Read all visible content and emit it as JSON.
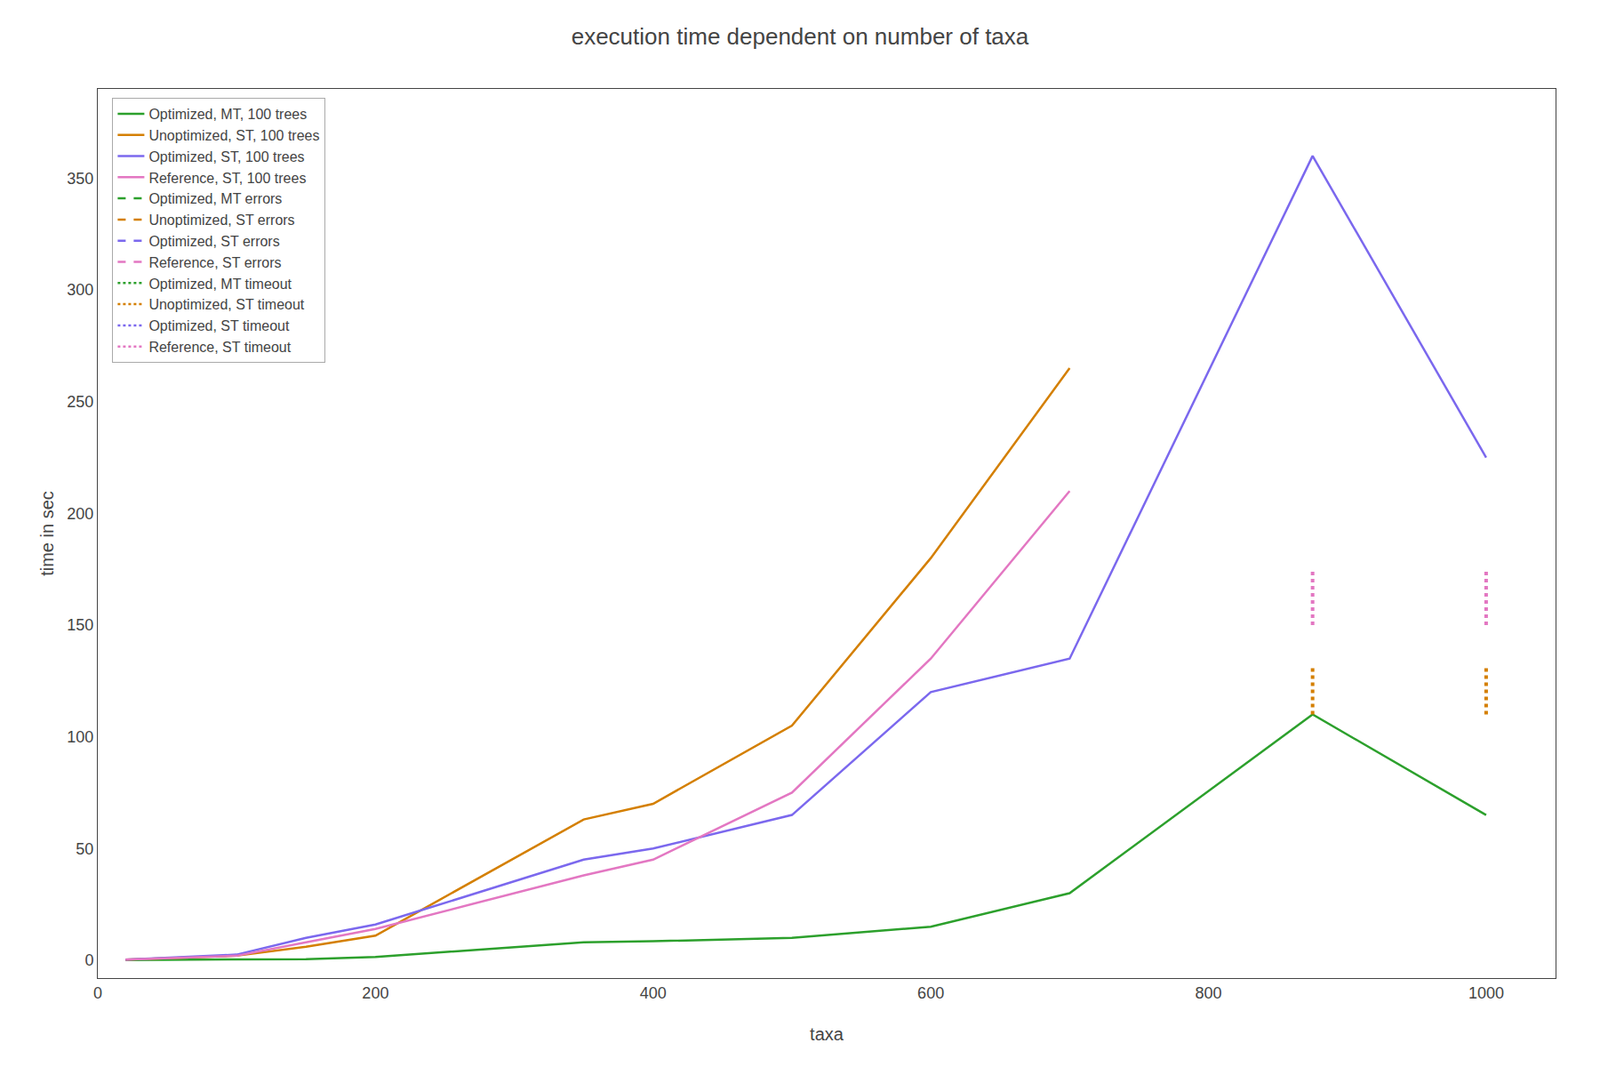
{
  "chart_data": {
    "type": "line",
    "title": "execution time dependent on number of taxa",
    "xlabel": "taxa",
    "ylabel": "time in sec",
    "series": [
      {
        "name": "Optimized, MT, 100 trees",
        "color": "#2ca02c",
        "line_style": "solid",
        "x": [
          20,
          100,
          150,
          200,
          350,
          400,
          500,
          600,
          700,
          875,
          1000
        ],
        "values": [
          0.1,
          0.2,
          0.5,
          1.5,
          8.0,
          8.5,
          10.0,
          15.0,
          30.0,
          110.0,
          65.0
        ]
      },
      {
        "name": "Unoptimized, ST, 100 trees",
        "color": "#d47f00",
        "line_style": "solid",
        "x": [
          20,
          100,
          150,
          200,
          350,
          400,
          500,
          600,
          700
        ],
        "values": [
          0.3,
          2.0,
          6.0,
          11.0,
          63.0,
          70.0,
          105.0,
          180.0,
          265.0
        ]
      },
      {
        "name": "Optimized, ST, 100 trees",
        "color": "#7b68ee",
        "line_style": "solid",
        "x": [
          20,
          100,
          150,
          200,
          350,
          400,
          500,
          600,
          700,
          875,
          1000
        ],
        "values": [
          0.3,
          2.5,
          10.0,
          16.0,
          45.0,
          50.0,
          65.0,
          120.0,
          135.0,
          360.0,
          225.0
        ]
      },
      {
        "name": "Reference, ST, 100 trees",
        "color": "#e377c2",
        "line_style": "solid",
        "x": [
          20,
          100,
          150,
          200,
          350,
          400,
          500,
          600,
          700
        ],
        "values": [
          0.3,
          2.0,
          8.0,
          14.0,
          38.0,
          45.0,
          75.0,
          135.0,
          210.0
        ]
      }
    ],
    "timeout_markers": [
      {
        "color": "#d47f00",
        "line_style": "dotted",
        "x": [
          875,
          1000
        ],
        "low": 110,
        "high": 132
      },
      {
        "color": "#e377c2",
        "line_style": "dotted",
        "x": [
          875,
          1000
        ],
        "low": 150,
        "high": 175
      }
    ],
    "extra_legend_entries": [
      {
        "name": "Optimized, MT errors",
        "color": "#2ca02c",
        "line_style": "dashed"
      },
      {
        "name": "Unoptimized, ST errors",
        "color": "#d47f00",
        "line_style": "dashed"
      },
      {
        "name": "Optimized, ST errors",
        "color": "#7b68ee",
        "line_style": "dashed"
      },
      {
        "name": "Reference, ST errors",
        "color": "#e377c2",
        "line_style": "dashed"
      },
      {
        "name": "Optimized, MT timeout",
        "color": "#2ca02c",
        "line_style": "dotted"
      },
      {
        "name": "Unoptimized, ST timeout",
        "color": "#d47f00",
        "line_style": "dotted"
      },
      {
        "name": "Optimized, ST timeout",
        "color": "#7b68ee",
        "line_style": "dotted"
      },
      {
        "name": "Reference, ST timeout",
        "color": "#e377c2",
        "line_style": "dotted"
      }
    ],
    "xlim": [
      0,
      1050
    ],
    "xticks": [
      0,
      200,
      400,
      600,
      800,
      1000
    ],
    "ylim": [
      -8,
      390
    ],
    "yticks": [
      0,
      50,
      100,
      150,
      200,
      250,
      300,
      350
    ],
    "grid": false,
    "legend": "upper left"
  }
}
